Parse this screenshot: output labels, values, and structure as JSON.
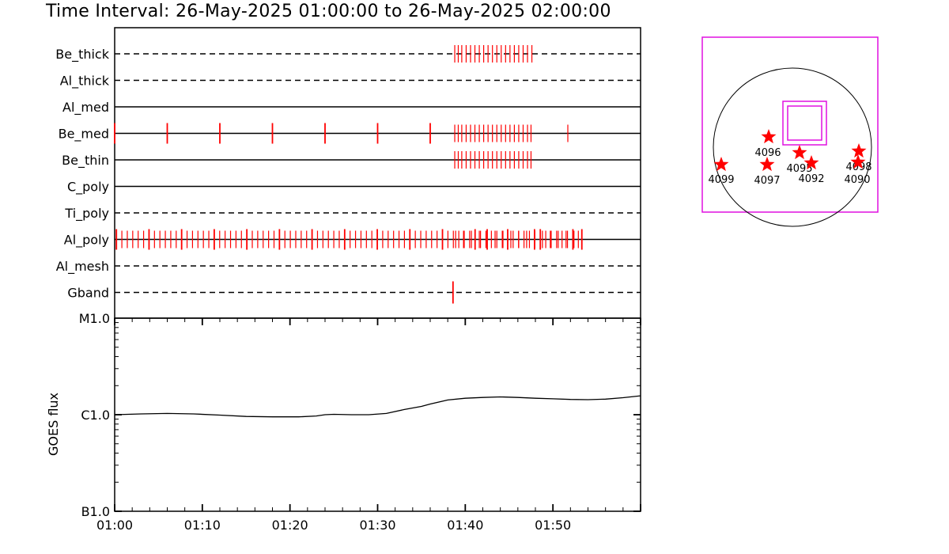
{
  "title": "Time Interval: 26-May-2025 01:00:00 to 26-May-2025 02:00:00",
  "chart_data": [
    {
      "type": "timeline",
      "x_range_minutes": [
        0,
        60
      ],
      "channels": [
        {
          "name": "Be_thick",
          "style": "dashed",
          "events": [
            38.8,
            39.2,
            39.6,
            40.1,
            40.6,
            41.1,
            41.6,
            42.1,
            42.6,
            43.1,
            43.6,
            44.1,
            44.6,
            45.1,
            45.6,
            46.1,
            46.6,
            47.1,
            47.6
          ]
        },
        {
          "name": "Al_thick",
          "style": "dashed",
          "events": []
        },
        {
          "name": "Al_med",
          "style": "solid",
          "events": []
        },
        {
          "name": "Be_med",
          "style": "solid",
          "events": [
            0,
            6,
            12,
            18,
            24,
            30,
            36,
            38.8,
            39.2,
            39.6,
            40.1,
            40.6,
            41.1,
            41.6,
            42.1,
            42.6,
            43.1,
            43.6,
            44.1,
            44.6,
            45.1,
            45.6,
            46.1,
            46.6,
            47.1,
            47.5,
            51.7
          ]
        },
        {
          "name": "Be_thin",
          "style": "solid",
          "events": [
            38.8,
            39.2,
            39.6,
            40.1,
            40.6,
            41.1,
            41.6,
            42.1,
            42.6,
            43.1,
            43.6,
            44.1,
            44.6,
            45.1,
            45.6,
            46.1,
            46.6,
            47.1,
            47.5
          ]
        },
        {
          "name": "C_poly",
          "style": "solid",
          "events": []
        },
        {
          "name": "Ti_poly",
          "style": "dashed",
          "events": []
        },
        {
          "name": "Al_poly",
          "style": "solid",
          "events": "dense"
        },
        {
          "name": "Al_mesh",
          "style": "dashed",
          "events": []
        },
        {
          "name": "Gband",
          "style": "dashed",
          "events": [
            38.6
          ]
        }
      ]
    },
    {
      "type": "line",
      "ylabel": "GOES flux",
      "y_log": true,
      "ylim": [
        1e-07,
        1e-05
      ],
      "yticks": [
        {
          "value": 1e-05,
          "label": "M1.0"
        },
        {
          "value": 1e-06,
          "label": "C1.0"
        },
        {
          "value": 1e-07,
          "label": "B1.0"
        }
      ],
      "xlim": [
        0,
        60
      ],
      "xticks": [
        {
          "value": 0,
          "label": "01:00"
        },
        {
          "value": 10,
          "label": "01:10"
        },
        {
          "value": 20,
          "label": "01:20"
        },
        {
          "value": 30,
          "label": "01:30"
        },
        {
          "value": 40,
          "label": "01:40"
        },
        {
          "value": 50,
          "label": "01:50"
        }
      ],
      "x": [
        0,
        3,
        6,
        9,
        12,
        15,
        18,
        21,
        23,
        24,
        25,
        27,
        29,
        31,
        33,
        35,
        36,
        38,
        40,
        42,
        44,
        46,
        48,
        50,
        52,
        54,
        56,
        58,
        60
      ],
      "y": [
        1e-06,
        1.02e-06,
        1.03e-06,
        1.02e-06,
        9.9e-07,
        9.6e-07,
        9.5e-07,
        9.5e-07,
        9.7e-07,
        1e-06,
        1.01e-06,
        1e-06,
        1e-06,
        1.03e-06,
        1.13e-06,
        1.22e-06,
        1.29e-06,
        1.42e-06,
        1.48e-06,
        1.51e-06,
        1.53e-06,
        1.51e-06,
        1.48e-06,
        1.46e-06,
        1.44e-06,
        1.43e-06,
        1.45e-06,
        1.5e-06,
        1.57e-06
      ]
    }
  ],
  "sun_map": {
    "regions": [
      {
        "label": "4096"
      },
      {
        "label": "4095"
      },
      {
        "label": "4092"
      },
      {
        "label": "4099"
      },
      {
        "label": "4097"
      },
      {
        "label": "4098"
      },
      {
        "label": "4090"
      }
    ]
  },
  "colors": {
    "event": "#ff0000",
    "frame": "#e010e0",
    "line": "#000000"
  }
}
